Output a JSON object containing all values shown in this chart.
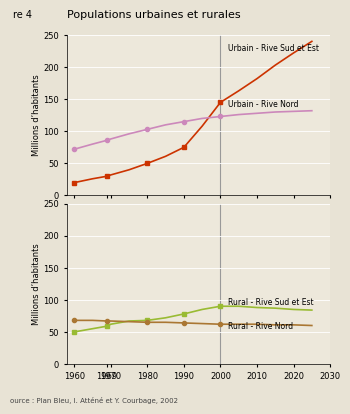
{
  "title": "Populations urbaines et rurales",
  "title_prefix": "re 4",
  "ylabel": "Millions d’habitants",
  "source": "ource : Plan Bleu, I. Atténé et Y. Courbage, 2002",
  "bg_color": "#ede8db",
  "fig_color": "#e8e3d5",
  "vline_x": 2000,
  "years_urban": [
    1960,
    1965,
    1969,
    1970,
    1975,
    1980,
    1985,
    1990,
    1995,
    2000,
    2005,
    2010,
    2015,
    2020,
    2025
  ],
  "urban_sud_est": [
    20,
    26,
    30,
    32,
    40,
    50,
    61,
    75,
    108,
    145,
    163,
    182,
    203,
    222,
    240
  ],
  "urban_nord": [
    72,
    80,
    86,
    88,
    96,
    103,
    110,
    115,
    120,
    123,
    126,
    128,
    130,
    131,
    132
  ],
  "years_rural": [
    1960,
    1965,
    1969,
    1970,
    1975,
    1980,
    1985,
    1990,
    1995,
    2000,
    2005,
    2010,
    2015,
    2020,
    2025
  ],
  "rural_sud_est": [
    50,
    55,
    59,
    62,
    67,
    68,
    72,
    78,
    85,
    90,
    90,
    88,
    87,
    85,
    84
  ],
  "rural_nord": [
    68,
    68,
    67,
    67,
    66,
    65,
    65,
    64,
    63,
    62,
    62,
    62,
    61,
    61,
    60
  ],
  "urban_sud_est_color": "#cc3300",
  "urban_nord_color": "#cc88bb",
  "rural_sud_est_color": "#99bb33",
  "rural_nord_color": "#aa7733",
  "xlim": [
    1958,
    2030
  ],
  "ylim": [
    0,
    250
  ],
  "xticks": [
    1960,
    1969,
    1970,
    1980,
    1990,
    2000,
    2010,
    2020,
    2030
  ],
  "xtick_labels": [
    "1960",
    "1969",
    "1970",
    "1980",
    "1990",
    "2000",
    "2010",
    "2020",
    "2030"
  ],
  "yticks": [
    0,
    50,
    100,
    150,
    200,
    250
  ],
  "vline_color": "#999999",
  "marker_years": [
    1960,
    1969,
    1980,
    1990,
    2000
  ],
  "marker_size": 3,
  "lw": 1.2
}
